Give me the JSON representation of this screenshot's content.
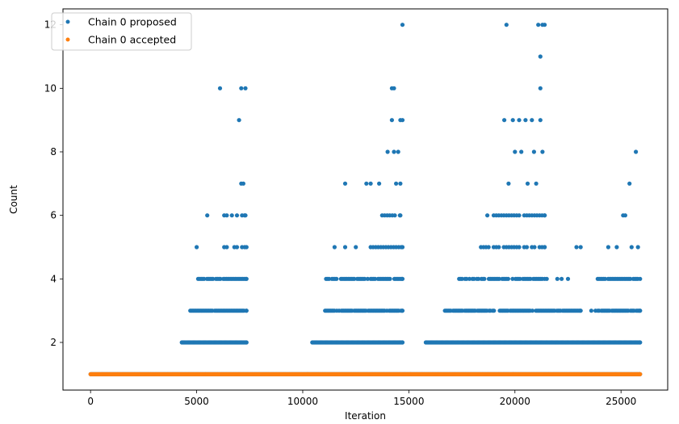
{
  "chart_data": {
    "type": "scatter",
    "xlabel": "Iteration",
    "ylabel": "Count",
    "xlim": [
      -1300,
      27200
    ],
    "ylim": [
      0.5,
      12.5
    ],
    "xticks": [
      0,
      5000,
      10000,
      15000,
      20000,
      25000
    ],
    "yticks": [
      2,
      4,
      6,
      8,
      10,
      12
    ],
    "legend_position": "top-left",
    "x_max_iteration": 25900,
    "series": [
      {
        "name": "Chain 0 proposed",
        "color": "#1f77b4",
        "bands": [
          {
            "y": 1,
            "ranges": [
              [
                0,
                25900
              ]
            ]
          },
          {
            "y": 2,
            "ranges": [
              [
                4300,
                7350
              ],
              [
                10450,
                14700
              ],
              [
                15800,
                25900
              ]
            ]
          },
          {
            "y": 3,
            "ranges": [
              [
                4700,
                7350
              ],
              [
                11000,
                14700
              ],
              [
                16700,
                23100
              ],
              [
                23800,
                25900
              ]
            ]
          },
          {
            "y": 4,
            "ranges": [
              [
                5000,
                7350
              ],
              [
                11100,
                14700
              ],
              [
                17300,
                21400
              ],
              [
                23900,
                25900
              ]
            ]
          },
          {
            "y": 5,
            "ranges": [
              [
                6300,
                7350
              ],
              [
                13200,
                14700
              ],
              [
                18400,
                21400
              ]
            ]
          },
          {
            "y": 6,
            "ranges": [
              [
                6300,
                7300
              ],
              [
                13500,
                14600
              ],
              [
                19000,
                21400
              ]
            ]
          }
        ],
        "points": [
          [
            5000,
            5
          ],
          [
            5500,
            6
          ],
          [
            6100,
            10
          ],
          [
            7000,
            9
          ],
          [
            7100,
            7
          ],
          [
            7200,
            7
          ],
          [
            7100,
            10
          ],
          [
            7300,
            10
          ],
          [
            11500,
            5
          ],
          [
            12000,
            5
          ],
          [
            12500,
            5
          ],
          [
            12000,
            7
          ],
          [
            13000,
            7
          ],
          [
            13200,
            7
          ],
          [
            13600,
            7
          ],
          [
            14000,
            8
          ],
          [
            14200,
            9
          ],
          [
            14200,
            10
          ],
          [
            14300,
            10
          ],
          [
            14300,
            8
          ],
          [
            14500,
            8
          ],
          [
            14600,
            9
          ],
          [
            14700,
            9
          ],
          [
            14400,
            7
          ],
          [
            14600,
            7
          ],
          [
            14700,
            12
          ],
          [
            18700,
            6
          ],
          [
            19500,
            9
          ],
          [
            19600,
            12
          ],
          [
            19700,
            7
          ],
          [
            19900,
            9
          ],
          [
            20000,
            8
          ],
          [
            20200,
            9
          ],
          [
            20300,
            8
          ],
          [
            20500,
            9
          ],
          [
            20600,
            7
          ],
          [
            20800,
            9
          ],
          [
            20900,
            8
          ],
          [
            21000,
            7
          ],
          [
            21100,
            12
          ],
          [
            21200,
            9
          ],
          [
            21200,
            11
          ],
          [
            21200,
            10
          ],
          [
            21300,
            12
          ],
          [
            21300,
            8
          ],
          [
            21400,
            12
          ],
          [
            21500,
            4
          ],
          [
            22000,
            4
          ],
          [
            22200,
            4
          ],
          [
            22500,
            4
          ],
          [
            22900,
            5
          ],
          [
            23100,
            5
          ],
          [
            23600,
            3
          ],
          [
            24400,
            5
          ],
          [
            24800,
            5
          ],
          [
            25100,
            6
          ],
          [
            25200,
            6
          ],
          [
            25400,
            7
          ],
          [
            25500,
            5
          ],
          [
            25700,
            8
          ],
          [
            25800,
            5
          ]
        ]
      },
      {
        "name": "Chain 0 accepted",
        "color": "#ff7f0e",
        "bands": [
          {
            "y": 1,
            "ranges": [
              [
                0,
                25900
              ]
            ]
          }
        ],
        "points": []
      }
    ]
  }
}
